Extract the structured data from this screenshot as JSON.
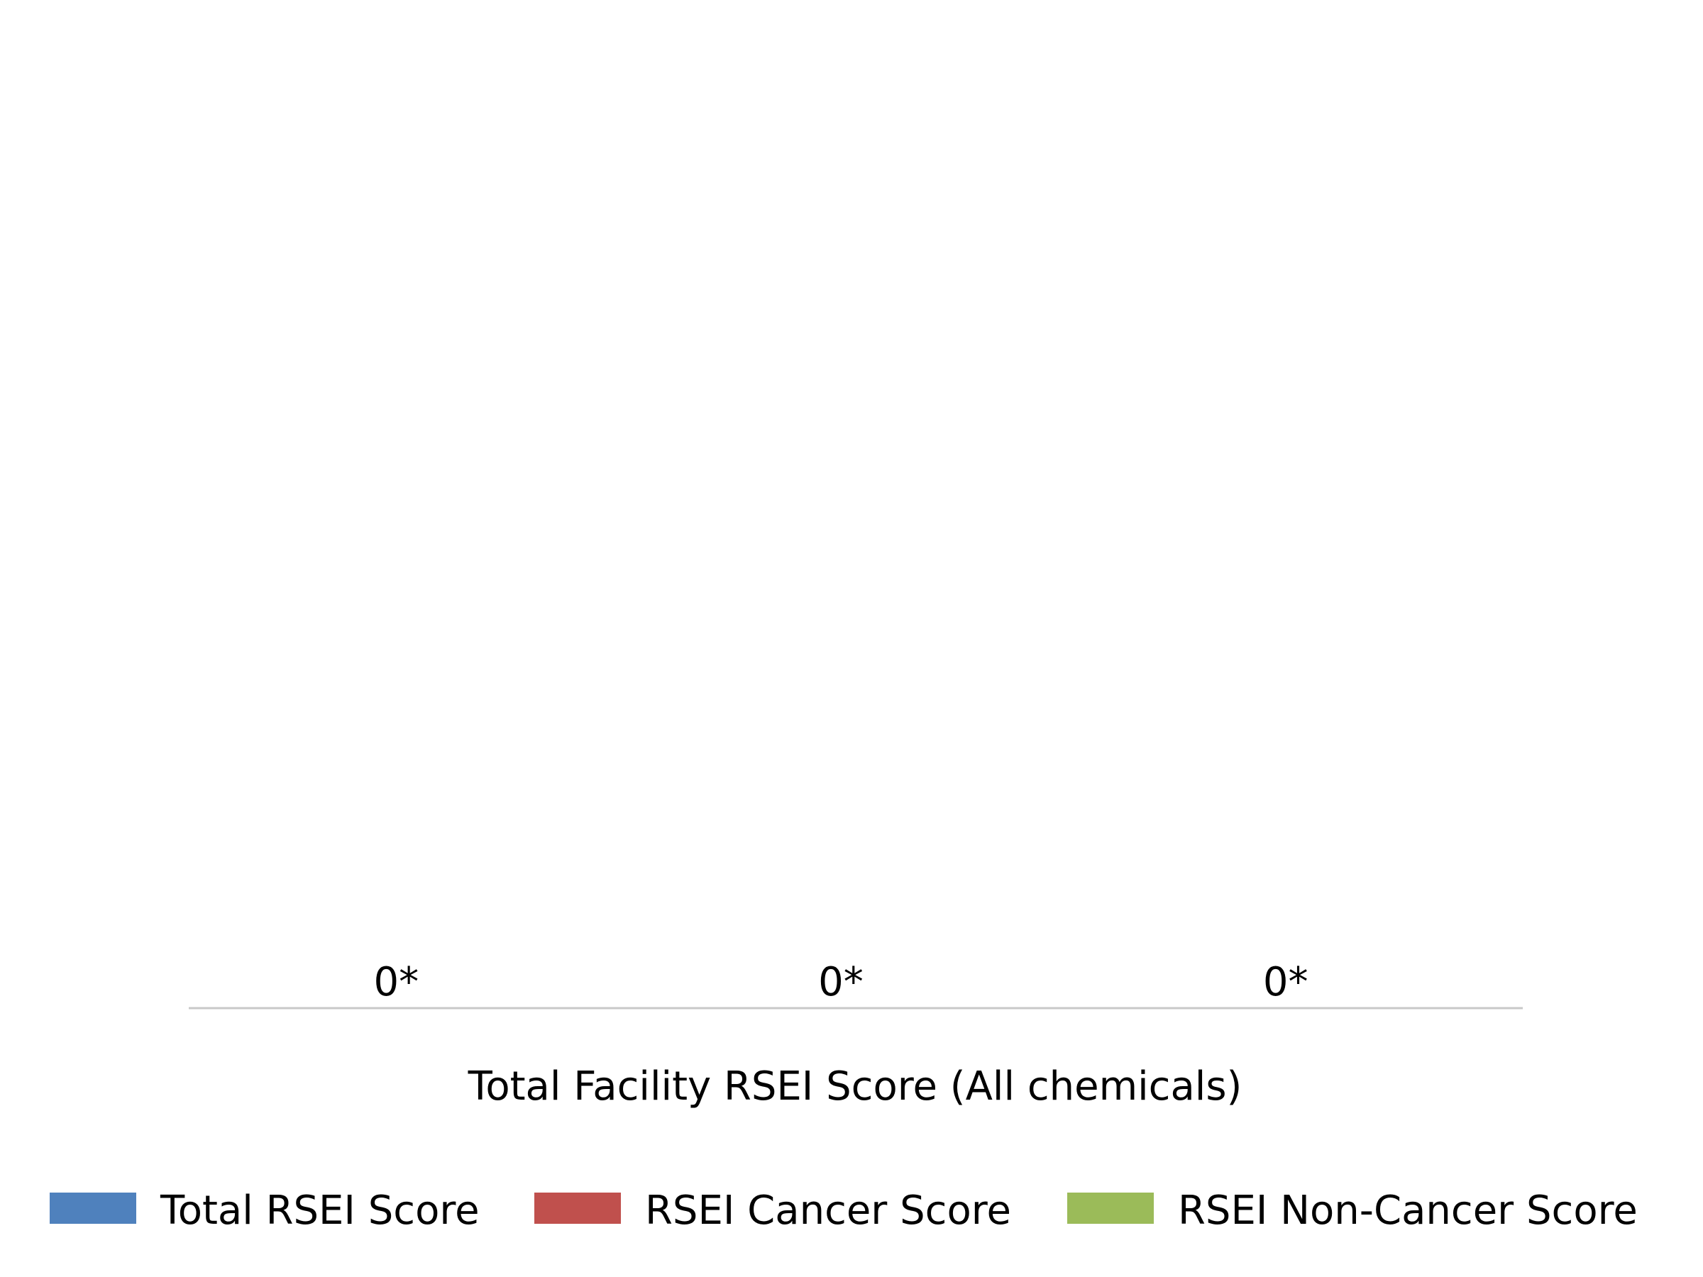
{
  "chart_data": {
    "type": "bar",
    "title": "",
    "xlabel": "Total Facility RSEI Score (All chemicals)",
    "ylabel": "",
    "categories": [
      "Total Facility RSEI Score (All chemicals)"
    ],
    "series": [
      {
        "name": "Total RSEI Score",
        "values": [
          0
        ],
        "data_label": "0*",
        "color": "#4f81bd"
      },
      {
        "name": "RSEI Cancer Score",
        "values": [
          0
        ],
        "data_label": "0*",
        "color": "#c0504d"
      },
      {
        "name": "RSEI Non-Cancer Score",
        "values": [
          0
        ],
        "data_label": "0*",
        "color": "#9bbb59"
      }
    ],
    "ylim": [
      0,
      1
    ],
    "grid": false,
    "legend_position": "bottom",
    "axis_color": "#c8c8c8"
  }
}
